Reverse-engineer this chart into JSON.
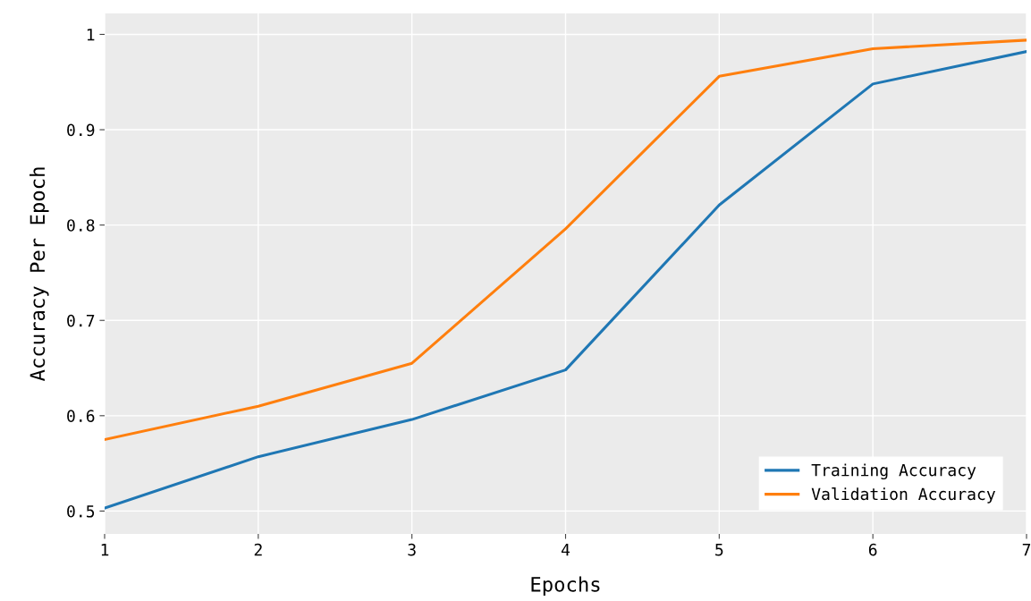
{
  "chart_data": {
    "type": "line",
    "xlabel": "Epochs",
    "ylabel": "Accuracy Per Epoch",
    "x": [
      1,
      2,
      3,
      4,
      5,
      6,
      7
    ],
    "series": [
      {
        "name": "Training Accuracy",
        "color": "#1f77b4",
        "values": [
          0.503,
          0.557,
          0.596,
          0.648,
          0.821,
          0.948,
          0.982
        ]
      },
      {
        "name": "Validation Accuracy",
        "color": "#ff7f0e",
        "values": [
          0.575,
          0.61,
          0.655,
          0.796,
          0.956,
          0.985,
          0.994
        ]
      }
    ],
    "xlim": [
      1,
      7
    ],
    "xticks": [
      1,
      2,
      3,
      4,
      5,
      6,
      7
    ],
    "ylim": [
      0.476,
      1.022
    ],
    "yticks": [
      0.5,
      0.6,
      0.7,
      0.8,
      0.9,
      1
    ],
    "grid": true,
    "legend": "bottom right",
    "marker": "none",
    "line_style": "solid"
  }
}
